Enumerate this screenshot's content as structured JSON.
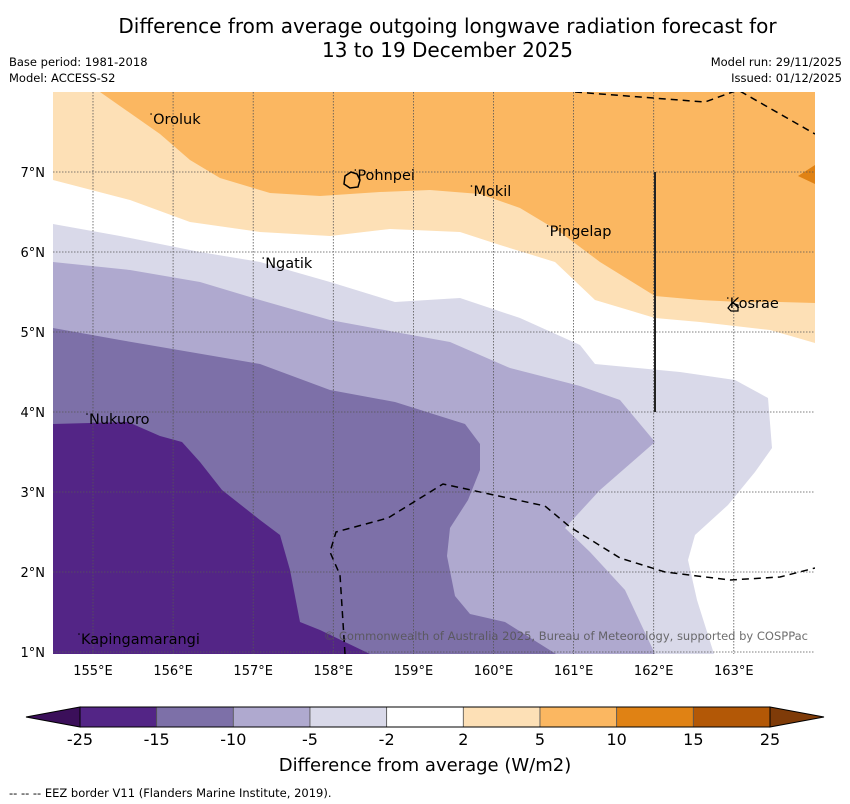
{
  "title": {
    "line1": "Difference from average outgoing longwave radiation forecast for",
    "line2": "13 to 19 December 2025"
  },
  "meta_left": {
    "base_period": "Base period: 1981-2018",
    "model": "Model: ACCESS-S2"
  },
  "meta_right": {
    "model_run": "Model run: 29/11/2025",
    "issued": "Issued: 01/12/2025"
  },
  "map": {
    "extent": {
      "lon": [
        154.5,
        164.0
      ],
      "lat": [
        1.0,
        8.0
      ]
    },
    "lon_ticks": [
      "155°E",
      "156°E",
      "157°E",
      "158°E",
      "159°E",
      "160°E",
      "161°E",
      "162°E",
      "163°E"
    ],
    "lon_tick_values": [
      155,
      156,
      157,
      158,
      159,
      160,
      161,
      162,
      163
    ],
    "lat_ticks": [
      "1°N",
      "2°N",
      "3°N",
      "4°N",
      "5°N",
      "6°N",
      "7°N"
    ],
    "lat_tick_values": [
      1,
      2,
      3,
      4,
      5,
      6,
      7
    ],
    "places": [
      {
        "name": "Oroluk",
        "lon": 155.75,
        "lat": 7.6
      },
      {
        "name": "Pohnpei",
        "lon": 158.3,
        "lat": 6.9
      },
      {
        "name": "Mokil",
        "lon": 159.75,
        "lat": 6.7
      },
      {
        "name": "Pingelap",
        "lon": 160.7,
        "lat": 6.2
      },
      {
        "name": "Ngatik",
        "lon": 157.15,
        "lat": 5.8
      },
      {
        "name": "Kosrae",
        "lon": 162.95,
        "lat": 5.3
      },
      {
        "name": "Nukuoro",
        "lon": 154.95,
        "lat": 3.85
      },
      {
        "name": "Kapingamarangi",
        "lon": 154.85,
        "lat": 1.1
      }
    ],
    "copyright": "© Commonwealth of Australia 2025, Bureau of Meteorology, supported by COSPPac"
  },
  "colorbar": {
    "label": "Difference from average (W/m2)",
    "ticks": [
      "-25",
      "-15",
      "-10",
      "-5",
      "-2",
      "2",
      "5",
      "10",
      "15",
      "25"
    ],
    "colors": {
      "below_-25": "#3b0f5a",
      "-25_-15": "#532586",
      "-15_-10": "#7d70a8",
      "-10_-5": "#afa9cf",
      "-5_-2": "#d9d9e9",
      "-2_2": "#ffffff",
      "2_5": "#fde0b6",
      "5_10": "#fbb761",
      "10_15": "#e08214",
      "15_25": "#b35806",
      "above_25": "#7f3b08"
    }
  },
  "footer": "--  --  -- EEZ border V11 (Flanders Marine Institute, 2019)."
}
